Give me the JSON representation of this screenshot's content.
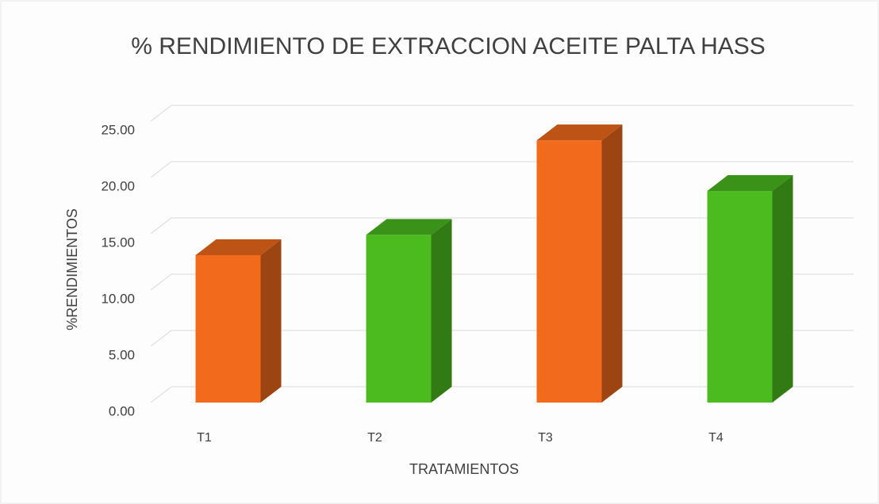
{
  "chart_data": {
    "type": "bar3d",
    "title": "% RENDIMIENTO DE EXTRACCION ACEITE PALTA HASS",
    "x_label": "TRATAMIENTOS",
    "y_label": "%RENDIMIENTOS",
    "categories": [
      "T1",
      "T2",
      "T3",
      "T4"
    ],
    "values": [
      13.1,
      14.9,
      23.3,
      18.8
    ],
    "colors": [
      "#f26a1b",
      "#4cbb1f",
      "#f26a1b",
      "#4cbb1f"
    ],
    "ylim": [
      0,
      25
    ],
    "yticks": [
      {
        "value": 0,
        "label": "0.00"
      },
      {
        "value": 5,
        "label": "5.00"
      },
      {
        "value": 10,
        "label": "10.00"
      },
      {
        "value": 15,
        "label": "15.00"
      },
      {
        "value": 20,
        "label": "20.00"
      },
      {
        "value": 25,
        "label": "25.00"
      }
    ],
    "grid": true
  }
}
